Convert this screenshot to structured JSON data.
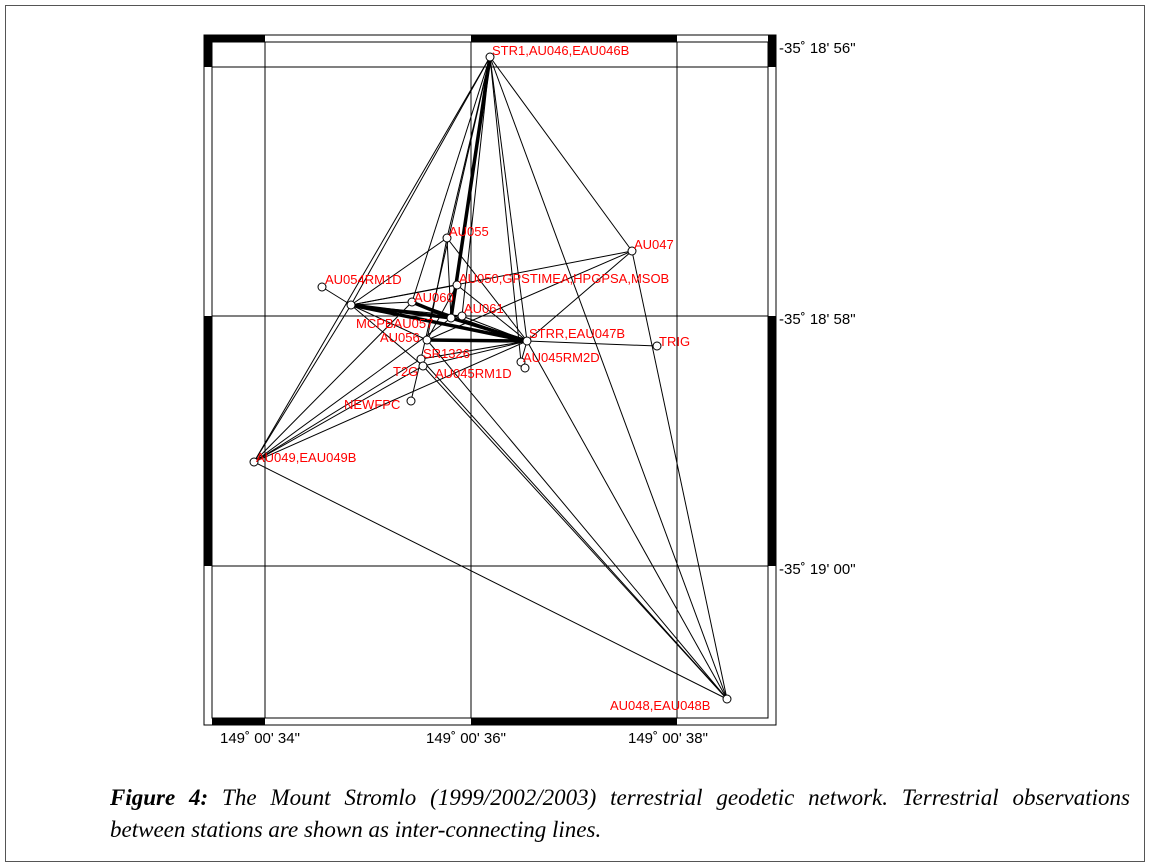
{
  "figure": {
    "longitude_labels": [
      "149˚ 00' 34\"",
      "149˚ 00' 36\"",
      "149˚ 00' 38\""
    ],
    "latitude_labels": [
      "-35˚ 18' 56\"",
      "-35˚ 18' 58\"",
      "-35˚ 19' 00\""
    ]
  },
  "stations": [
    {
      "id": "str1",
      "label": "STR1,AU046,EAU046B"
    },
    {
      "id": "au055",
      "label": "AU055"
    },
    {
      "id": "au047",
      "label": "AU047"
    },
    {
      "id": "au050",
      "label": "AU050,GPSTIMEA,HPGPSA,MSOB"
    },
    {
      "id": "au054rm1d",
      "label": "AU054RM1D"
    },
    {
      "id": "au054",
      "label": ""
    },
    {
      "id": "au060",
      "label": "AU060"
    },
    {
      "id": "au061",
      "label": "AU061"
    },
    {
      "id": "au057",
      "label": "MCPBAU057"
    },
    {
      "id": "au056",
      "label": "AU056"
    },
    {
      "id": "strr",
      "label": "STRR,EAU047B"
    },
    {
      "id": "trig",
      "label": "TRIG"
    },
    {
      "id": "au045rm2d",
      "label": "AU045RM2D"
    },
    {
      "id": "sr1326",
      "label": "SR1326"
    },
    {
      "id": "t2g",
      "label": "T2G"
    },
    {
      "id": "au045rm1d",
      "label": "AU045RM1D"
    },
    {
      "id": "newfpc",
      "label": "NEWFPC"
    },
    {
      "id": "au049",
      "label": "AU049,EAU049B"
    },
    {
      "id": "au048",
      "label": "AU048,EAU048B"
    }
  ],
  "caption": {
    "label": "Figure 4:",
    "text": " The Mount Stromlo (1999/2002/2003) terrestrial geodetic network.  Terrestrial observations between stations are shown as inter-connecting lines."
  }
}
